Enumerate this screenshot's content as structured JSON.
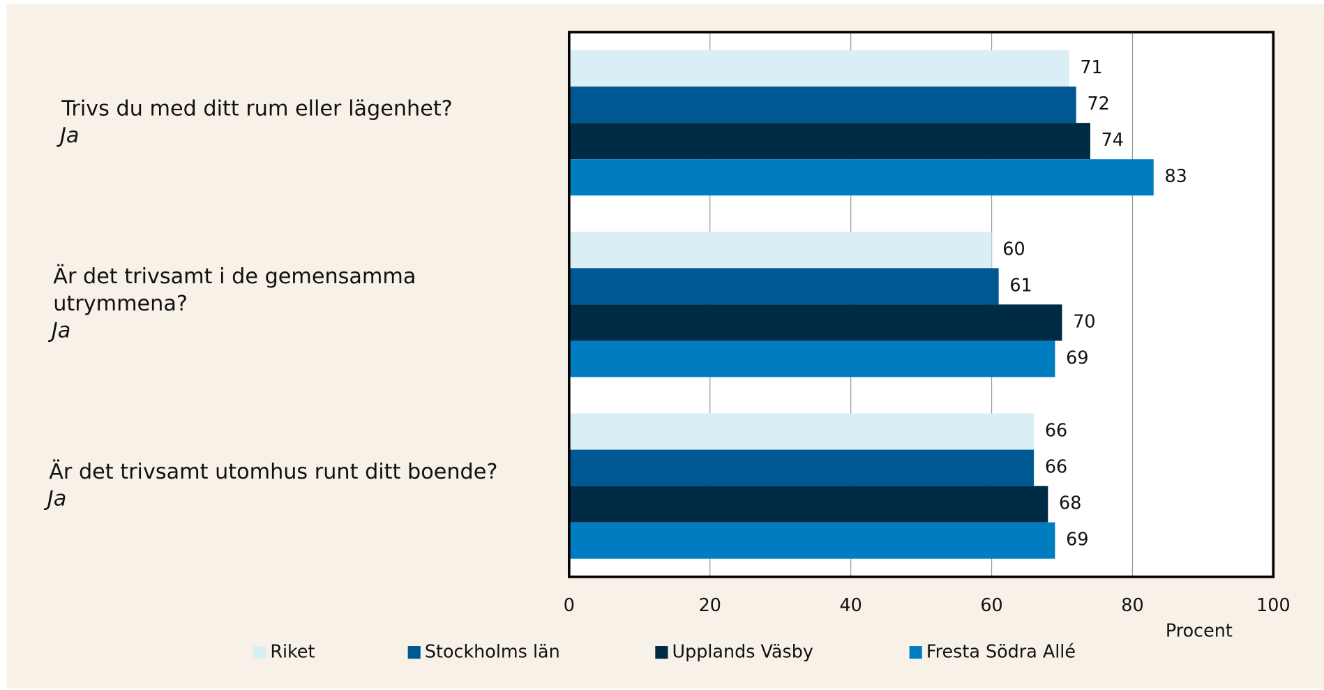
{
  "chart_data": {
    "type": "barh",
    "categories": [
      [
        "Trivs du med ditt rum eller lägenhet?"
      ],
      [
        "Är det trivsamt i de gemensamma",
        "utrymmena?"
      ],
      [
        "Är det trivsamt utomhus runt ditt boende?"
      ]
    ],
    "category_notes": [
      "Ja",
      "Ja",
      "Ja"
    ],
    "series": [
      {
        "name": "Riket",
        "color": "#daeef5",
        "values": [
          71,
          60,
          66
        ]
      },
      {
        "name": "Stockholms län",
        "color": "#005893",
        "values": [
          72,
          61,
          66
        ]
      },
      {
        "name": "Upplands Väsby",
        "color": "#002b45",
        "values": [
          74,
          70,
          68
        ]
      },
      {
        "name": "Fresta Södra Allé",
        "color": "#007dc0",
        "values": [
          83,
          69,
          69
        ]
      }
    ],
    "xlabel": "Procent",
    "xlim": [
      0,
      100
    ],
    "xticks": [
      0,
      20,
      40,
      60,
      80,
      100
    ],
    "grid": true
  }
}
